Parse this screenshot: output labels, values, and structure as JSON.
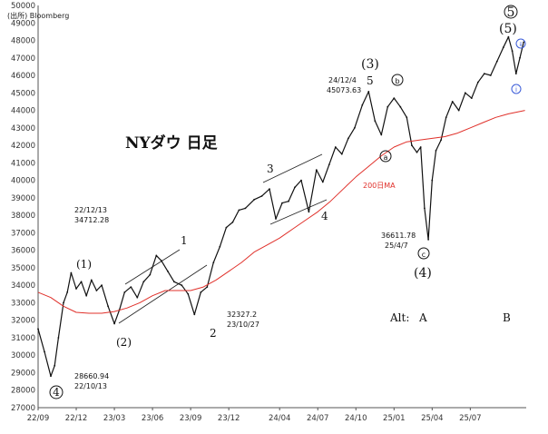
{
  "chart_data": {
    "type": "line",
    "title": "NYダウ 日足",
    "source": "(出所) Bloomberg",
    "ylim": [
      27000,
      50000
    ],
    "y_ticks": [
      27000,
      28000,
      29000,
      30000,
      31000,
      32000,
      33000,
      34000,
      35000,
      36000,
      37000,
      38000,
      39000,
      40000,
      41000,
      42000,
      43000,
      44000,
      45000,
      46000,
      47000,
      48000,
      49000,
      50000
    ],
    "x_ticks": [
      {
        "label": "22/09",
        "t": 0
      },
      {
        "label": "22/12",
        "t": 3
      },
      {
        "label": "23/03",
        "t": 6
      },
      {
        "label": "23/06",
        "t": 9
      },
      {
        "label": "23/09",
        "t": 12
      },
      {
        "label": "23/12",
        "t": 15
      },
      {
        "label": "24/04",
        "t": 19
      },
      {
        "label": "24/07",
        "t": 22
      },
      {
        "label": "24/10",
        "t": 25
      },
      {
        "label": "25/01",
        "t": 28
      },
      {
        "label": "25/04",
        "t": 31
      },
      {
        "label": "25/07",
        "t": 34
      }
    ],
    "grid": false,
    "series": [
      {
        "name": "",
        "color": "#111111",
        "x": [
          0,
          0.5,
          1.0,
          1.3,
          1.6,
          2.0,
          2.3,
          2.6,
          3.0,
          3.4,
          3.8,
          4.2,
          4.6,
          5.0,
          5.5,
          6.0,
          6.4,
          6.8,
          7.3,
          7.8,
          8.3,
          8.8,
          9.3,
          9.7,
          10.2,
          10.7,
          11.3,
          11.8,
          12.3,
          12.8,
          13.3,
          13.8,
          14.3,
          14.8,
          15.3,
          15.8,
          16.3,
          17.0,
          17.6,
          18.2,
          18.7,
          19.2,
          19.7,
          20.2,
          20.7,
          21.3,
          21.9,
          22.4,
          22.9,
          23.4,
          23.9,
          24.4,
          24.9,
          25.5,
          26.0,
          26.5,
          27.0,
          27.5,
          28.0,
          28.5,
          29.0,
          29.4,
          29.8,
          30.1,
          30.4,
          30.7,
          31.0,
          31.3,
          31.7,
          32.1,
          32.6,
          33.1,
          33.6,
          34.1,
          34.6,
          35.1,
          35.6,
          36.1,
          36.6,
          37.0,
          37.3,
          37.6,
          37.9,
          38.2
        ],
        "values": [
          31500,
          30200,
          28800,
          29400,
          31000,
          33000,
          33600,
          34712,
          33800,
          34200,
          33400,
          34300,
          33700,
          34000,
          32800,
          31800,
          32600,
          33600,
          33900,
          33300,
          34200,
          34600,
          35700,
          35400,
          34800,
          34200,
          34000,
          33500,
          32327,
          33600,
          33900,
          35300,
          36200,
          37300,
          37600,
          38300,
          38400,
          38900,
          39100,
          39500,
          37800,
          38700,
          38800,
          39600,
          40000,
          38200,
          40600,
          39900,
          40900,
          41900,
          41500,
          42400,
          43000,
          44300,
          45073,
          43400,
          42600,
          44200,
          44700,
          44200,
          43600,
          42000,
          41600,
          41900,
          38400,
          36611,
          40000,
          41700,
          42300,
          43600,
          44500,
          44000,
          45000,
          44700,
          45600,
          46100,
          46000,
          46800,
          47600,
          48200,
          47400,
          46100,
          47000,
          47900
        ]
      },
      {
        "name": "200日MA",
        "color": "#e0302a",
        "x": [
          0,
          1.0,
          2.0,
          3.0,
          4.0,
          5.0,
          6.0,
          7.0,
          8.0,
          9.0,
          10.0,
          11.0,
          12.0,
          13.0,
          14.0,
          15.0,
          16.0,
          17.0,
          18.0,
          19.0,
          20.0,
          21.0,
          22.0,
          23.0,
          24.0,
          25.0,
          26.0,
          27.0,
          28.0,
          29.0,
          30.0,
          31.0,
          32.0,
          33.0,
          34.0,
          35.0,
          36.0,
          37.0,
          38.0,
          38.3
        ],
        "values": [
          33600,
          33300,
          32800,
          32450,
          32400,
          32400,
          32500,
          32700,
          33000,
          33400,
          33700,
          33700,
          33700,
          33900,
          34300,
          34800,
          35300,
          35900,
          36300,
          36700,
          37200,
          37700,
          38200,
          38800,
          39500,
          40200,
          40800,
          41400,
          41900,
          42200,
          42300,
          42400,
          42500,
          42700,
          43000,
          43300,
          43600,
          43800,
          43950,
          44000
        ]
      }
    ],
    "annotations": {
      "low_2022": {
        "date": "22/10/13",
        "value": "28660.94"
      },
      "peak_2022": {
        "date": "22/12/13",
        "value": "34712.28"
      },
      "low_2023": {
        "value": "32327.2",
        "date": "23/10/27"
      },
      "peak_2024": {
        "date": "24/12/4",
        "value": "45073.63"
      },
      "low_2025": {
        "value": "36611.78",
        "date": "25/4/7"
      },
      "ma_label": "200日MA",
      "alt_label": "Alt:",
      "alt_a": "A",
      "alt_b": "B"
    },
    "wave_labels": {
      "w4_circled": "4",
      "w1_paren": "(1)",
      "w2_paren": "(2)",
      "minor_1": "1",
      "minor_2": "2",
      "minor_3": "3",
      "minor_4": "4",
      "minor_5": "5",
      "w3_paren": "(3)",
      "w4_paren": "(4)",
      "w5_circled": "5",
      "w5_paren": "(5)",
      "a_circled": "a",
      "b_circled": "b",
      "c_circled": "c",
      "i_circled": "i",
      "ii_circled": "ii"
    }
  }
}
